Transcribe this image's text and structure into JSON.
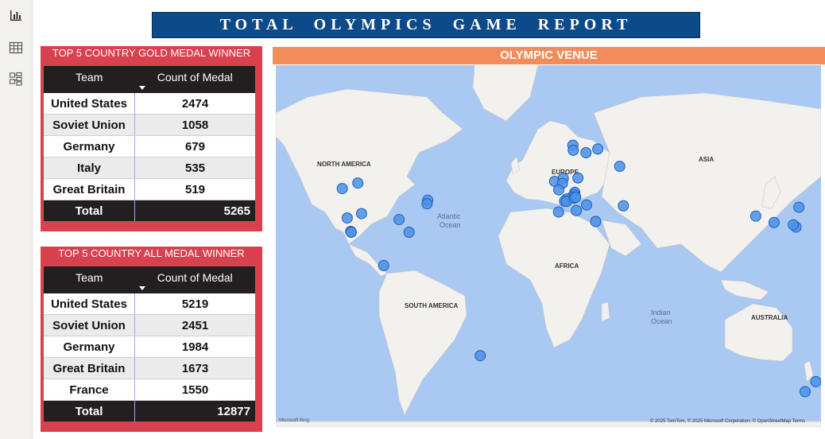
{
  "report_title": "TOTAL OLYMPICS GAME REPORT",
  "rail": {
    "icons": [
      "bar-chart-icon",
      "table-icon",
      "model-icon"
    ]
  },
  "gold_table": {
    "title": "TOP 5 COUNTRY GOLD MEDAL WINNER",
    "col_team": "Team",
    "col_count": "Count of Medal",
    "rows": [
      {
        "team": "United States",
        "count": "2474"
      },
      {
        "team": "Soviet Union",
        "count": "1058"
      },
      {
        "team": "Germany",
        "count": "679"
      },
      {
        "team": "Italy",
        "count": "535"
      },
      {
        "team": "Great Britain",
        "count": "519"
      }
    ],
    "total_label": "Total",
    "total_value": "5265"
  },
  "all_table": {
    "title": "TOP 5 COUNTRY ALL MEDAL WINNER",
    "col_team": "Team",
    "col_count": "Count of Medal",
    "rows": [
      {
        "team": "United States",
        "count": "5219"
      },
      {
        "team": "Soviet Union",
        "count": "2451"
      },
      {
        "team": "Germany",
        "count": "1984"
      },
      {
        "team": "Great Britain",
        "count": "1673"
      },
      {
        "team": "France",
        "count": "1550"
      }
    ],
    "total_label": "Total",
    "total_value": "12877"
  },
  "map": {
    "title": "OLYMPIC VENUE",
    "labels": {
      "north_america": "NORTH AMERICA",
      "south_america": "SOUTH AMERICA",
      "europe": "EUROPE",
      "africa": "AFRICA",
      "asia": "ASIA",
      "australia": "AUSTRALIA",
      "atlantic_1": "Atlantic",
      "atlantic_2": "Ocean",
      "indian_1": "Indian",
      "indian_2": "Ocean"
    },
    "attribution": "© 2025 TomTom, © 2025 Microsoft Corporation, © OpenStreetMap  Terms",
    "provider": "Microsoft Bing",
    "marker_color": "#4a90e8",
    "venues": [
      {
        "lat": 49.3,
        "lon": -123.1
      },
      {
        "lat": 51.0,
        "lon": -114.1
      },
      {
        "lat": 39.2,
        "lon": -120.2
      },
      {
        "lat": 34.0,
        "lon": -118.2
      },
      {
        "lat": 33.7,
        "lon": -117.9
      },
      {
        "lat": 40.8,
        "lon": -111.9
      },
      {
        "lat": 38.6,
        "lon": -90.2
      },
      {
        "lat": 33.7,
        "lon": -84.4
      },
      {
        "lat": 45.5,
        "lon": -73.6
      },
      {
        "lat": 44.3,
        "lon": -74.0
      },
      {
        "lat": 19.4,
        "lon": -99.1
      },
      {
        "lat": -22.9,
        "lon": -43.2
      },
      {
        "lat": 59.3,
        "lon": 18.1
      },
      {
        "lat": 60.2,
        "lon": 24.9
      },
      {
        "lat": 61.1,
        "lon": 10.5
      },
      {
        "lat": 59.9,
        "lon": 10.7
      },
      {
        "lat": 51.5,
        "lon": -0.1
      },
      {
        "lat": 52.4,
        "lon": 4.9
      },
      {
        "lat": 50.9,
        "lon": 4.4
      },
      {
        "lat": 48.9,
        "lon": 2.3
      },
      {
        "lat": 52.5,
        "lon": 13.4
      },
      {
        "lat": 48.1,
        "lon": 11.6
      },
      {
        "lat": 47.3,
        "lon": 11.4
      },
      {
        "lat": 46.5,
        "lon": 9.8
      },
      {
        "lat": 45.9,
        "lon": 6.9
      },
      {
        "lat": 45.2,
        "lon": 5.7
      },
      {
        "lat": 45.1,
        "lon": 6.7
      },
      {
        "lat": 46.2,
        "lon": 11.2
      },
      {
        "lat": 46.5,
        "lon": 12.1
      },
      {
        "lat": 41.9,
        "lon": 12.5
      },
      {
        "lat": 43.9,
        "lon": 18.4
      },
      {
        "lat": 41.4,
        "lon": 2.2
      },
      {
        "lat": 37.9,
        "lon": 23.7
      },
      {
        "lat": 55.8,
        "lon": 37.6
      },
      {
        "lat": 43.6,
        "lon": 39.7
      },
      {
        "lat": 37.5,
        "lon": 127.0
      },
      {
        "lat": 39.9,
        "lon": 116.4
      },
      {
        "lat": 35.7,
        "lon": 139.7
      },
      {
        "lat": 43.1,
        "lon": 141.4
      },
      {
        "lat": 36.6,
        "lon": 138.2
      },
      {
        "lat": -33.9,
        "lon": 151.2
      },
      {
        "lat": -37.8,
        "lon": 145.0
      }
    ]
  }
}
